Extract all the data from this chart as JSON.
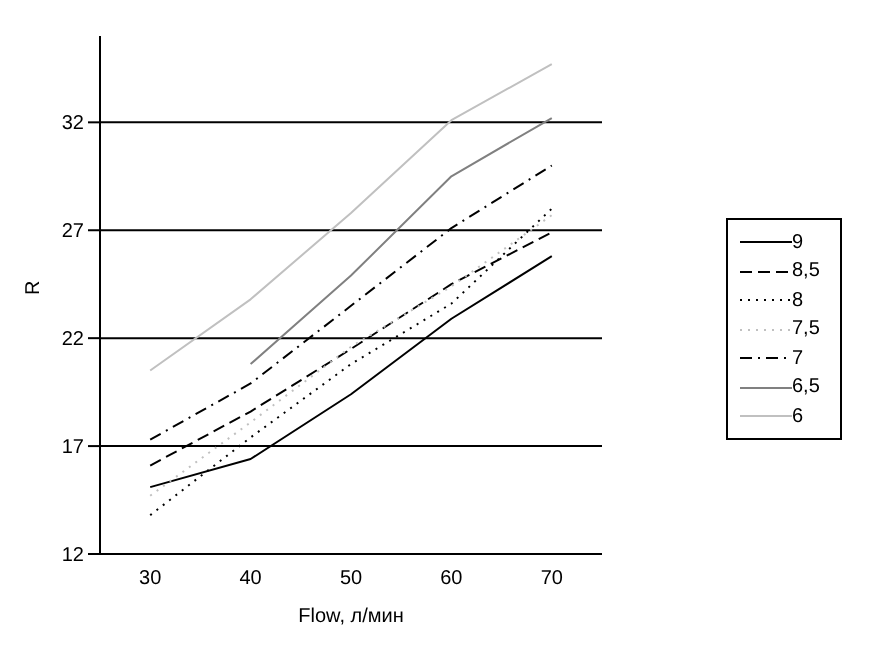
{
  "chart_data": {
    "type": "line",
    "xlabel": "Flow, л/мин",
    "ylabel": "R",
    "categories": [
      "30",
      "40",
      "50",
      "60",
      "70"
    ],
    "ylim": [
      12,
      36
    ],
    "yticks": [
      12,
      17,
      22,
      27,
      32
    ],
    "grid": "y",
    "legend": "right",
    "marker": "none",
    "series": [
      {
        "name": "9",
        "color": "#000000",
        "line_style": "solid",
        "values": [
          15.1,
          16.4,
          19.4,
          22.9,
          25.8
        ]
      },
      {
        "name": "8,5",
        "color": "#000000",
        "line_style": "dashed",
        "values": [
          16.1,
          18.6,
          21.5,
          24.5,
          26.9
        ]
      },
      {
        "name": "8",
        "color": "#000000",
        "line_style": "dotted",
        "values": [
          13.8,
          17.4,
          20.8,
          23.6,
          28.0
        ]
      },
      {
        "name": "7,5",
        "color": "#c0c0c0",
        "line_style": "dotted",
        "values": [
          14.7,
          18.1,
          21.6,
          24.4,
          27.7
        ]
      },
      {
        "name": "7",
        "color": "#000000",
        "line_style": "dashdot",
        "values": [
          17.3,
          19.9,
          23.5,
          27.1,
          30.0
        ]
      },
      {
        "name": "6,5",
        "color": "#808080",
        "line_style": "solid",
        "values": [
          null,
          20.8,
          24.9,
          29.5,
          32.2
        ]
      },
      {
        "name": "6",
        "color": "#c0c0c0",
        "line_style": "solid",
        "values": [
          20.5,
          23.8,
          27.8,
          32.1,
          34.7
        ]
      }
    ]
  }
}
